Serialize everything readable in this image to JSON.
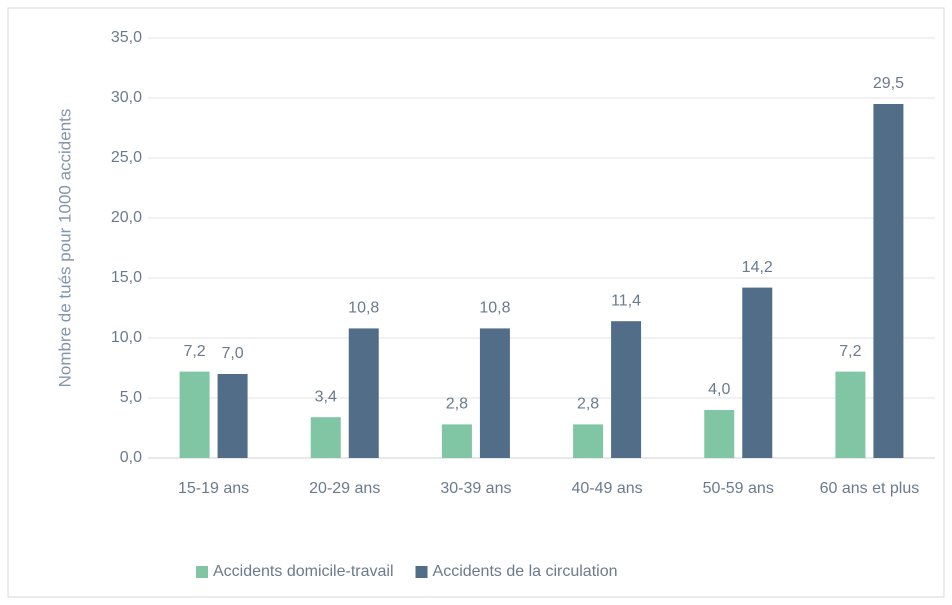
{
  "chart_data": {
    "type": "bar",
    "y_axis_label": "Nombre de tués pour 1000 accidents",
    "categories": [
      "15-19 ans",
      "20-29 ans",
      "30-39 ans",
      "40-49 ans",
      "50-59 ans",
      "60 ans et plus"
    ],
    "series": [
      {
        "name": "Accidents domicile-travail",
        "color": "#80c6a5",
        "values": [
          7.2,
          3.4,
          2.8,
          2.8,
          4.0,
          7.2
        ],
        "value_labels": [
          "7,2",
          "3,4",
          "2,8",
          "2,8",
          "4,0",
          "7,2"
        ]
      },
      {
        "name": "Accidents de la circulation",
        "color": "#526d88",
        "values": [
          7.0,
          10.8,
          10.8,
          11.4,
          14.2,
          29.5
        ],
        "value_labels": [
          "7,0",
          "10,8",
          "10,8",
          "11,4",
          "14,2",
          "29,5"
        ]
      }
    ],
    "ylim": [
      0,
      35
    ],
    "yticks": [
      {
        "value": 0,
        "label": "0,0"
      },
      {
        "value": 5,
        "label": "5,0"
      },
      {
        "value": 10,
        "label": "10,0"
      },
      {
        "value": 15,
        "label": "15,0"
      },
      {
        "value": 20,
        "label": "20,0"
      },
      {
        "value": 25,
        "label": "25,0"
      },
      {
        "value": 30,
        "label": "30,0"
      },
      {
        "value": 35,
        "label": "35,0"
      }
    ],
    "grid": true,
    "legend": "bottom"
  }
}
